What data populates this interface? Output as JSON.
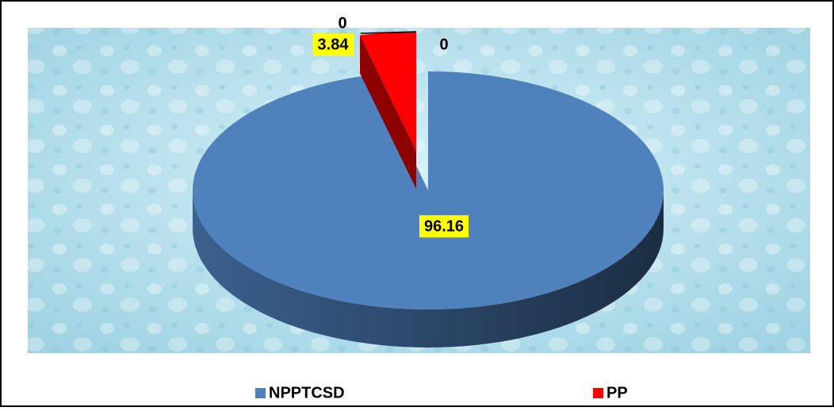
{
  "chart_data": {
    "type": "pie3d",
    "categories": [
      "NPPTCSD",
      "PP",
      null,
      null
    ],
    "values": [
      96.16,
      3.84,
      0,
      0
    ],
    "colors": [
      "#4f81bd",
      "#ff0000",
      "#4f81bd",
      "#ff0000"
    ]
  }
}
